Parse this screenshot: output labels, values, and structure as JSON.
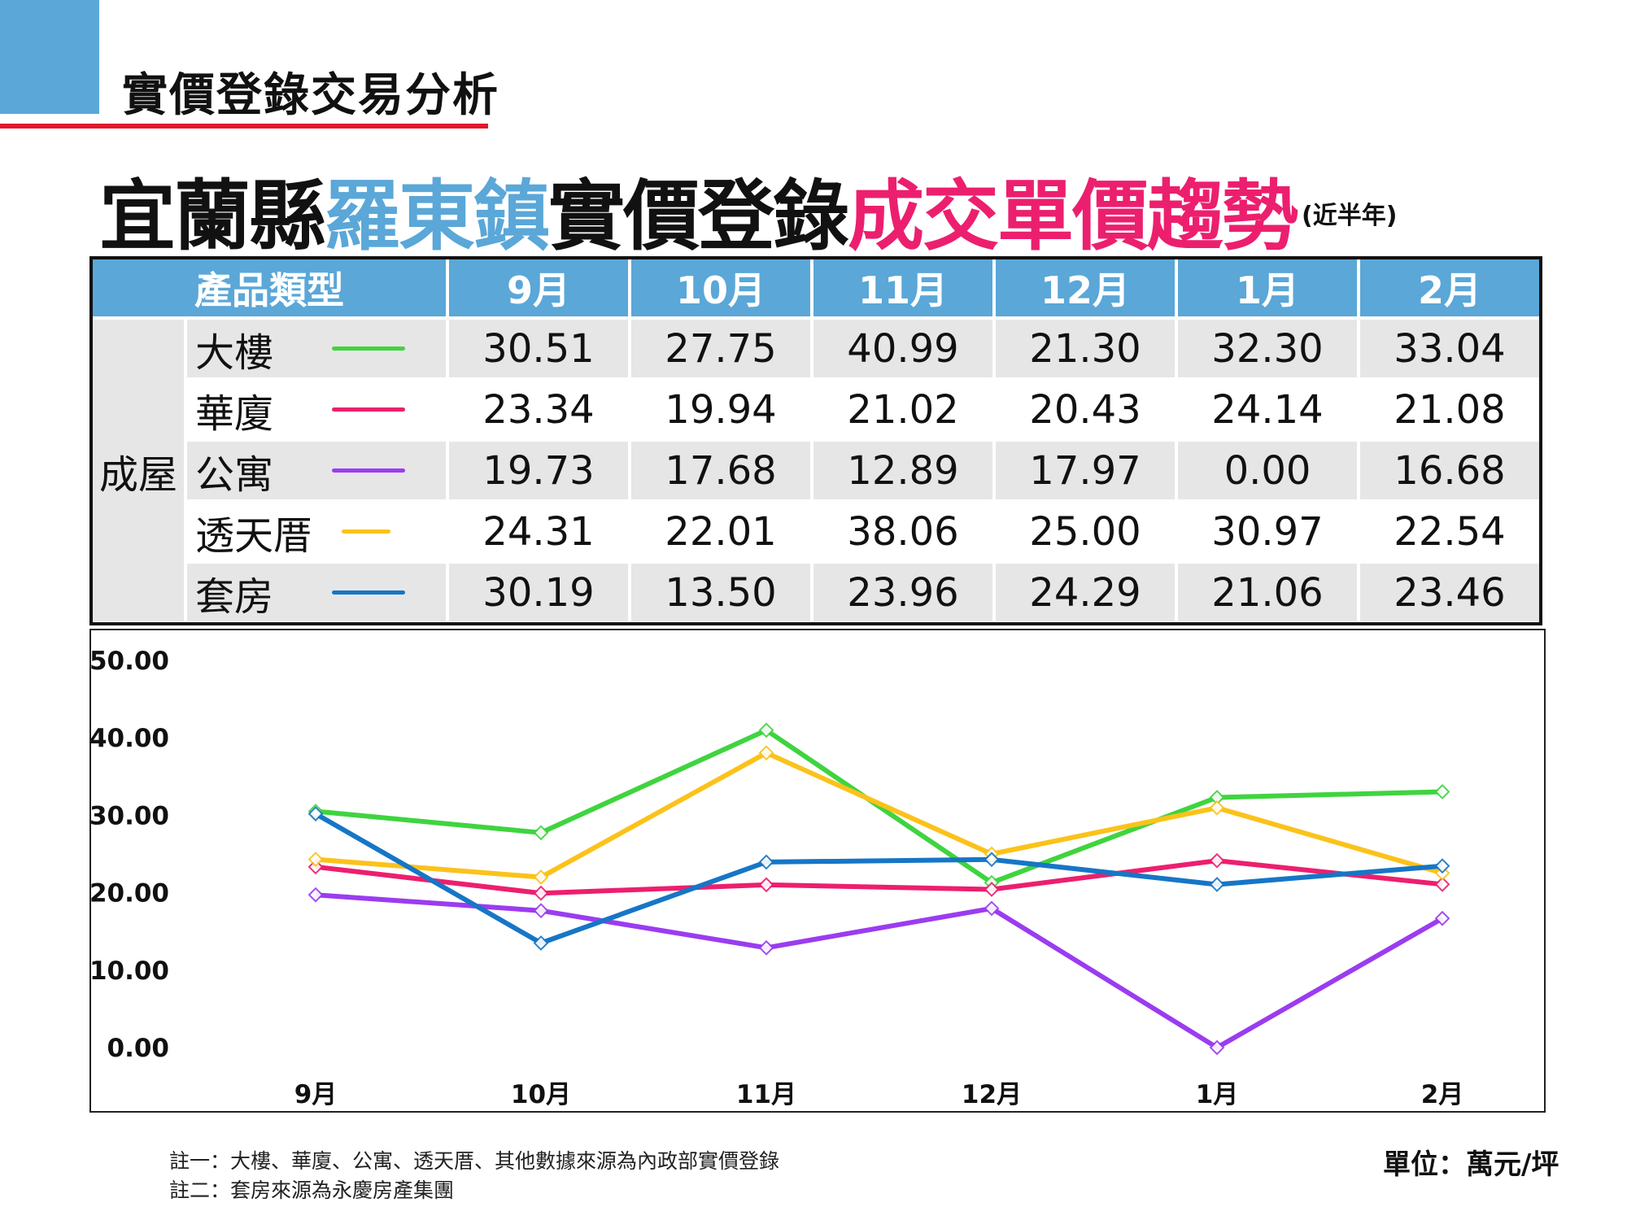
{
  "header": {
    "section_title": "實價登錄交易分析",
    "main_title_seg1": "宜蘭縣",
    "main_title_seg2": "羅東鎮",
    "main_title_seg3": "實價登錄",
    "main_title_seg4": "成交單價趨勢",
    "main_title_note": "(近半年)"
  },
  "colors": {
    "header_blue": "#5aa7d8",
    "accent_red": "#e0192d",
    "accent_pink": "#ec1f6e"
  },
  "table": {
    "type_header": "產品類型",
    "group_label": "成屋",
    "months": [
      "9月",
      "10月",
      "11月",
      "12月",
      "1月",
      "2月"
    ],
    "rows": [
      {
        "type": "大樓",
        "color": "#3fd43f",
        "values": [
          "30.51",
          "27.75",
          "40.99",
          "21.30",
          "32.30",
          "33.04"
        ]
      },
      {
        "type": "華廈",
        "color": "#ec1f6e",
        "values": [
          "23.34",
          "19.94",
          "21.02",
          "20.43",
          "24.14",
          "21.08"
        ]
      },
      {
        "type": "公寓",
        "color": "#9b3cf0",
        "values": [
          "19.73",
          "17.68",
          "12.89",
          "17.97",
          "0.00",
          "16.68"
        ]
      },
      {
        "type": "透天厝",
        "color": "#fbc21a",
        "values": [
          "24.31",
          "22.01",
          "38.06",
          "25.00",
          "30.97",
          "22.54"
        ]
      },
      {
        "type": "套房",
        "color": "#1676c6",
        "values": [
          "30.19",
          "13.50",
          "23.96",
          "24.29",
          "21.06",
          "23.46"
        ]
      }
    ]
  },
  "chart_data": {
    "type": "line",
    "x": [
      "9月",
      "10月",
      "11月",
      "12月",
      "1月",
      "2月"
    ],
    "ylim": [
      0,
      50
    ],
    "yticks": [
      "0.00",
      "10.00",
      "20.00",
      "30.00",
      "40.00",
      "50.00"
    ],
    "grid": false,
    "legend": "table-rows",
    "series": [
      {
        "name": "大樓",
        "color": "#3fd43f",
        "values": [
          30.51,
          27.75,
          40.99,
          21.3,
          32.3,
          33.04
        ]
      },
      {
        "name": "華廈",
        "color": "#ec1f6e",
        "values": [
          23.34,
          19.94,
          21.02,
          20.43,
          24.14,
          21.08
        ]
      },
      {
        "name": "公寓",
        "color": "#9b3cf0",
        "values": [
          19.73,
          17.68,
          12.89,
          17.97,
          0.0,
          16.68
        ]
      },
      {
        "name": "透天厝",
        "color": "#fbc21a",
        "values": [
          24.31,
          22.01,
          38.06,
          25.0,
          30.97,
          22.54
        ]
      },
      {
        "name": "套房",
        "color": "#1676c6",
        "values": [
          30.19,
          13.5,
          23.96,
          24.29,
          21.06,
          23.46
        ]
      }
    ]
  },
  "footer": {
    "note1": "註一：大樓、華廈、公寓、透天厝、其他數據來源為內政部實價登錄",
    "note2": "註二：套房來源為永慶房產集團",
    "unit": "單位：萬元/坪"
  }
}
